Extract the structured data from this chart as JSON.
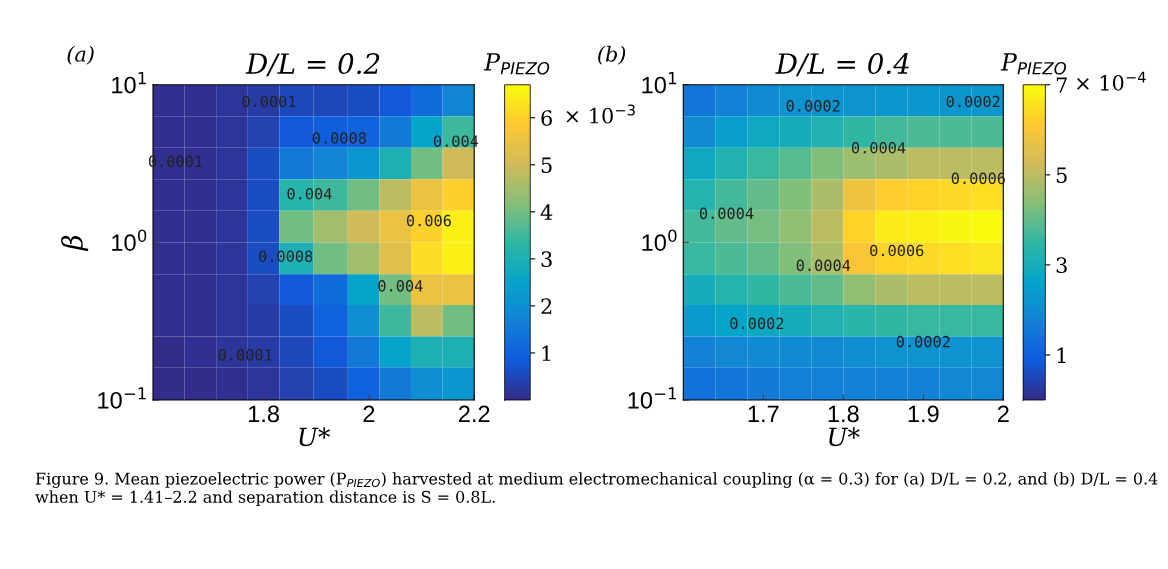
{
  "chart_data": [
    {
      "type": "heatmap",
      "title": "D/L = 0.2",
      "xlabel": "U*",
      "ylabel": "β",
      "clabel": "P$_{PIEZO}$",
      "log": "y",
      "xlim": [
        1.59,
        2.2
      ],
      "xticks": [
        1.8,
        2,
        2.2
      ],
      "ylim": [
        0.1,
        10
      ],
      "yticks": [
        {
          "value": 0.1,
          "label": "10$^{−1}$"
        },
        {
          "value": 1,
          "label": "10$^{0}$"
        },
        {
          "value": 10,
          "label": "10$^{1}$"
        }
      ],
      "clim": [
        0,
        6.7
      ],
      "cticks": [
        1,
        2,
        3,
        4,
        5,
        6
      ],
      "colors": [
        "#352a87",
        "#0f5cdd",
        "#1481d6",
        "#06a4ca",
        "#2eb7a4",
        "#87bf77",
        "#d1bb59",
        "#fec832",
        "#f9fb0e"
      ],
      "x": [
        1.62,
        1.68,
        1.74,
        1.8,
        1.86,
        1.93,
        1.99,
        2.05,
        2.11,
        2.17
      ],
      "y": [
        7.94,
        5.01,
        3.16,
        2.0,
        1.26,
        0.79,
        0.5,
        0.32,
        0.2,
        0.13
      ],
      "cells": [
        [
          0.1,
          0.1,
          0.2,
          0.3,
          0.5,
          0.5,
          0.6,
          0.8,
          1.2,
          1.8
        ],
        [
          0.1,
          0.1,
          0.2,
          0.4,
          0.8,
          0.9,
          1.0,
          1.5,
          2.5,
          3.5
        ],
        [
          0.1,
          0.1,
          0.2,
          0.6,
          1.5,
          1.8,
          2.2,
          3.0,
          4.0,
          5.0
        ],
        [
          0.1,
          0.1,
          0.2,
          0.6,
          3.2,
          3.5,
          4.0,
          4.8,
          5.5,
          6.0
        ],
        [
          0.1,
          0.1,
          0.2,
          0.6,
          4.0,
          4.5,
          5.0,
          5.5,
          6.0,
          6.5
        ],
        [
          0.1,
          0.1,
          0.2,
          0.6,
          3.0,
          4.0,
          4.5,
          5.3,
          6.2,
          6.5
        ],
        [
          0.1,
          0.1,
          0.2,
          0.4,
          0.8,
          1.2,
          2.5,
          4.0,
          5.5,
          5.5
        ],
        [
          0.1,
          0.1,
          0.2,
          0.3,
          0.6,
          1.0,
          2.0,
          3.5,
          4.8,
          4.0
        ],
        [
          0.05,
          0.1,
          0.2,
          0.3,
          0.5,
          0.8,
          1.5,
          2.5,
          3.0,
          3.0
        ],
        [
          0.05,
          0.05,
          0.1,
          0.2,
          0.4,
          0.6,
          1.0,
          1.5,
          2.0,
          2.2
        ]
      ],
      "annotations": [
        "(a)",
        "× 10$^{−3}$",
        "Figure 9. Mean piezoelectric power (P$_{PIEZO}$) harvested at medium electromechanical coupling (α = 0.3) for (a) D/L = 0.2, and (b) D/L = 0.4 when U* = 1.41–2.2 and separation distance is S = 0.8L.",
        "0.0001",
        "0.0001",
        "0.0008",
        "0.004",
        "0.004",
        "0.006",
        "0.0008",
        "0.004",
        "0.0001"
      ]
    },
    {
      "type": "heatmap",
      "title": "D/L = 0.4",
      "xlabel": "U*",
      "clabel": "P$_{PIEZO}$",
      "log": "y",
      "xlim": [
        1.6,
        2
      ],
      "xticks": [
        1.7,
        1.8,
        1.9,
        2
      ],
      "ylim": [
        0.1,
        10
      ],
      "yticks": [
        {
          "value": 0.1,
          "label": "10$^{−1}$"
        },
        {
          "value": 1,
          "label": "10$^{0}$"
        },
        {
          "value": 10,
          "label": "10$^{1}$"
        }
      ],
      "clim": [
        0,
        7
      ],
      "cticks": [
        1,
        3,
        5,
        7
      ],
      "colors": [
        "#352a87",
        "#0f5cdd",
        "#1481d6",
        "#06a4ca",
        "#2eb7a4",
        "#87bf77",
        "#d1bb59",
        "#fec832",
        "#f9fb0e"
      ],
      "x": [
        1.62,
        1.66,
        1.7,
        1.74,
        1.78,
        1.82,
        1.86,
        1.9,
        1.94,
        1.98
      ],
      "y": [
        7.94,
        5.01,
        3.16,
        2.0,
        1.26,
        0.79,
        0.5,
        0.32,
        0.2,
        0.13
      ],
      "cells": [
        [
          1.5,
          1.8,
          2.0,
          2.2,
          2.2,
          2.2,
          2.3,
          2.3,
          2.3,
          2.3
        ],
        [
          2.0,
          2.5,
          2.8,
          3.0,
          3.2,
          3.5,
          3.7,
          3.8,
          3.8,
          3.8
        ],
        [
          2.8,
          3.2,
          3.6,
          3.9,
          4.3,
          4.6,
          4.8,
          5.0,
          5.0,
          5.0
        ],
        [
          3.3,
          3.7,
          4.0,
          4.3,
          4.8,
          5.8,
          6.2,
          6.3,
          6.4,
          6.5
        ],
        [
          3.7,
          4.0,
          4.2,
          4.5,
          5.0,
          6.3,
          6.7,
          6.8,
          6.9,
          7.0
        ],
        [
          3.6,
          3.8,
          4.0,
          4.3,
          4.8,
          6.0,
          6.3,
          6.4,
          6.5,
          6.6
        ],
        [
          3.0,
          3.3,
          3.5,
          3.8,
          4.0,
          4.5,
          4.8,
          5.0,
          5.0,
          5.0
        ],
        [
          2.4,
          2.6,
          2.8,
          3.0,
          3.2,
          3.4,
          3.5,
          3.6,
          3.6,
          3.6
        ],
        [
          1.8,
          1.9,
          2.0,
          2.0,
          2.0,
          2.1,
          2.2,
          2.2,
          2.2,
          2.2
        ],
        [
          1.4,
          1.5,
          1.6,
          1.7,
          1.7,
          1.8,
          1.8,
          1.8,
          1.9,
          1.9
        ]
      ],
      "annotations": [
        "(b)",
        "× 10$^{−4}$",
        "0.0002",
        "0.0002",
        "0.0004",
        "0.0006",
        "0.0004",
        "0.0006",
        "0.0004",
        "0.0002",
        "0.0002"
      ]
    }
  ]
}
